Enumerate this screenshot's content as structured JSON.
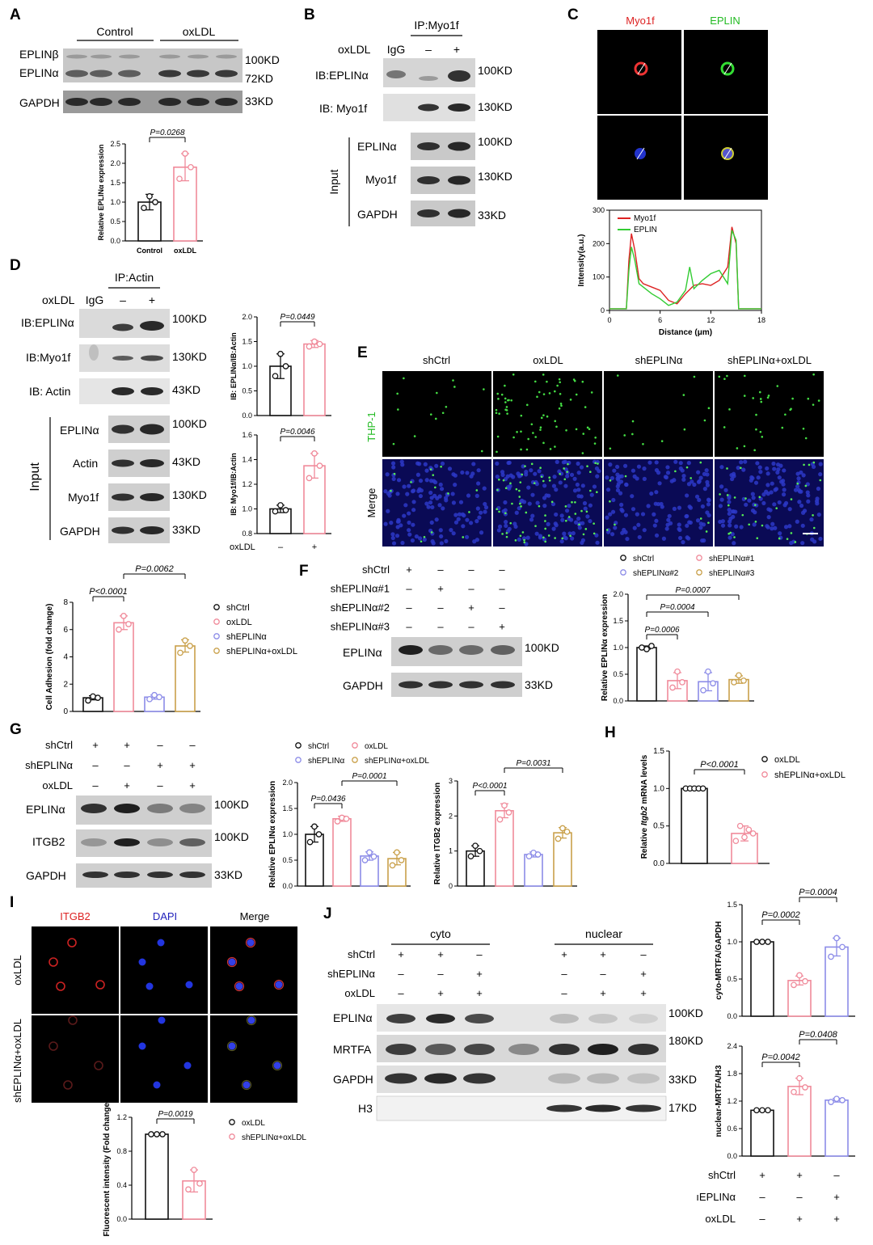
{
  "panelA": {
    "label": "A",
    "groups": [
      "Control",
      "oxLDL"
    ],
    "rows": [
      "EPLINβ",
      "EPLINα",
      "GAPDH"
    ],
    "markers": [
      "100KD",
      "72KD",
      "33KD"
    ],
    "chart_data": {
      "type": "bar",
      "categories": [
        "Control",
        "oxLDL"
      ],
      "values": [
        1.0,
        1.9
      ],
      "points": [
        [
          0.85,
          1.15,
          1.0
        ],
        [
          1.6,
          2.25,
          1.9
        ]
      ],
      "errors": [
        0.2,
        0.35
      ],
      "ylim": [
        0,
        2.5
      ],
      "yticks": [
        "0.0",
        "0.5",
        "1.0",
        "1.5",
        "2.0",
        "2.5"
      ],
      "ylabel": "Relative EPLINα expression",
      "pvalue": "P=0.0268",
      "colors": [
        "#111111",
        "#f08a9a"
      ]
    }
  },
  "panelB": {
    "label": "B",
    "ip_title": "IP:Myo1f",
    "treat_label": "oxLDL",
    "lanes": [
      "IgG",
      "–",
      "+"
    ],
    "ib_rows": [
      "IB:EPLINα",
      "IB: Myo1f"
    ],
    "ib_markers": [
      "100KD",
      "130KD"
    ],
    "input_label": "Input",
    "input_rows": [
      "EPLINα",
      "Myo1f",
      "GAPDH"
    ],
    "input_markers": [
      "100KD",
      "130KD",
      "33KD"
    ]
  },
  "panelC": {
    "label": "C",
    "channels": [
      "Myo1f",
      "EPLIN"
    ],
    "chart_data": {
      "type": "line",
      "xlabel": "Distance (μm)",
      "ylabel": "Intensity(a.u.)",
      "xlim": [
        0,
        18
      ],
      "ylim": [
        0,
        300
      ],
      "xticks": [
        "0",
        "6",
        "12",
        "18"
      ],
      "yticks": [
        "0",
        "100",
        "200",
        "300"
      ],
      "series": [
        {
          "name": "Myo1f",
          "color": "#d22",
          "x": [
            0,
            2,
            2.3,
            2.6,
            3,
            3.5,
            4,
            5,
            6,
            7,
            8,
            9,
            10,
            11,
            12,
            13,
            14,
            14.5,
            15,
            15.3,
            15.6,
            18
          ],
          "y": [
            5,
            5,
            150,
            230,
            180,
            95,
            80,
            70,
            60,
            30,
            20,
            50,
            75,
            80,
            75,
            90,
            130,
            250,
            200,
            5,
            5,
            5
          ]
        },
        {
          "name": "EPLIN",
          "color": "#3c3",
          "x": [
            0,
            2,
            2.3,
            2.6,
            3,
            3.5,
            4,
            5,
            6,
            7,
            8,
            9,
            9.5,
            10,
            11,
            12,
            13,
            14,
            14.5,
            15,
            15.3,
            15.6,
            18
          ],
          "y": [
            5,
            5,
            120,
            190,
            150,
            80,
            70,
            50,
            35,
            15,
            25,
            60,
            130,
            65,
            90,
            110,
            120,
            80,
            240,
            210,
            5,
            5,
            5
          ]
        }
      ]
    }
  },
  "panelD": {
    "label": "D",
    "ip_title": "IP:Actin",
    "treat_label": "oxLDL",
    "lanes": [
      "IgG",
      "–",
      "+"
    ],
    "ib_rows": [
      "IB:EPLINα",
      "IB:Myo1f",
      "IB: Actin"
    ],
    "ib_markers": [
      "100KD",
      "130KD",
      "43KD"
    ],
    "input_label": "Input",
    "input_rows": [
      "EPLINα",
      "Actin",
      "Myo1f",
      "GAPDH"
    ],
    "input_markers": [
      "100KD",
      "43KD",
      "130KD",
      "33KD"
    ],
    "chart1": {
      "type": "bar",
      "categories": [
        "–",
        "+"
      ],
      "values": [
        1.0,
        1.45
      ],
      "points": [
        [
          0.8,
          1.25,
          1.0
        ],
        [
          1.4,
          1.5,
          1.45
        ]
      ],
      "errors": [
        0.25,
        0.07
      ],
      "ylim": [
        0,
        2.0
      ],
      "yticks": [
        "0.0",
        "0.5",
        "1.0",
        "1.5",
        "2.0"
      ],
      "ylabel": "IB: EPLINα/IB:Actin",
      "pvalue": "P=0.0449",
      "colors": [
        "#111111",
        "#f08a9a"
      ]
    },
    "chart2": {
      "type": "bar",
      "categories": [
        "–",
        "+"
      ],
      "values": [
        1.0,
        1.35
      ],
      "points": [
        [
          0.98,
          1.03,
          0.99
        ],
        [
          1.25,
          1.45,
          1.35
        ]
      ],
      "errors": [
        0.03,
        0.1
      ],
      "ylim": [
        0.8,
        1.6
      ],
      "yticks": [
        "0.8",
        "1.0",
        "1.2",
        "1.4",
        "1.6"
      ],
      "ylabel": "IB: Myo1f/IB:Actin",
      "pvalue": "P=0.0046",
      "xlabel": "oxLDL",
      "colors": [
        "#111111",
        "#f08a9a"
      ]
    }
  },
  "panelE": {
    "label": "E",
    "columns": [
      "shCtrl",
      "oxLDL",
      "shEPLINα",
      "shEPLINα+oxLDL"
    ],
    "rows": [
      "THP-1",
      "Merge"
    ],
    "chart_data": {
      "type": "bar",
      "categories": [
        "shCtrl",
        "oxLDL",
        "shEPLINα",
        "shEPLINα+oxLDL"
      ],
      "values": [
        1.0,
        6.5,
        1.05,
        4.8
      ],
      "points": [
        [
          0.8,
          1.1,
          1.0
        ],
        [
          6.0,
          7.0,
          6.4
        ],
        [
          0.9,
          1.2,
          1.05
        ],
        [
          4.3,
          5.2,
          4.8
        ]
      ],
      "errors": [
        0.15,
        0.5,
        0.15,
        0.45
      ],
      "ylim": [
        0,
        8
      ],
      "yticks": [
        "0",
        "2",
        "4",
        "6",
        "8"
      ],
      "ylabel": "Cell Adhesion (fold change)",
      "p1": "P<0.0001",
      "p2": "P=0.0062",
      "colors": [
        "#111111",
        "#f08a9a",
        "#8c8ce8",
        "#c9a04a"
      ]
    }
  },
  "panelF": {
    "label": "F",
    "conditions": [
      "shCtrl",
      "shEPLINα#1",
      "shEPLINα#2",
      "shEPLINα#3"
    ],
    "signs": [
      [
        "+",
        "–",
        "–",
        "–"
      ],
      [
        "–",
        "+",
        "–",
        "–"
      ],
      [
        "–",
        "–",
        "+",
        "–"
      ],
      [
        "–",
        "–",
        "–",
        "+"
      ]
    ],
    "rows": [
      "EPLINα",
      "GAPDH"
    ],
    "markers": [
      "100KD",
      "33KD"
    ],
    "chart_data": {
      "type": "bar",
      "categories": [
        "shCtrl",
        "shEPLINα#1",
        "shEPLINα#2",
        "shEPLINα#3"
      ],
      "values": [
        1.0,
        0.38,
        0.36,
        0.4
      ],
      "points": [
        [
          1.0,
          0.97,
          1.03
        ],
        [
          0.25,
          0.55,
          0.35
        ],
        [
          0.2,
          0.55,
          0.33
        ],
        [
          0.35,
          0.48,
          0.38
        ]
      ],
      "errors": [
        0.03,
        0.15,
        0.17,
        0.07
      ],
      "ylim": [
        0,
        2.0
      ],
      "yticks": [
        "0.0",
        "0.5",
        "1.0",
        "1.5",
        "2.0"
      ],
      "ylabel": "Relative EPLINα expression",
      "pvalues": [
        "P=0.0006",
        "P=0.0004",
        "P=0.0007"
      ],
      "colors": [
        "#111111",
        "#f08a9a",
        "#8c8ce8",
        "#c9a04a"
      ]
    }
  },
  "panelG": {
    "label": "G",
    "conditions": [
      "shCtrl",
      "shEPLINα",
      "oxLDL"
    ],
    "signs": [
      [
        "+",
        "+",
        "–",
        "–"
      ],
      [
        "–",
        "–",
        "+",
        "+"
      ],
      [
        "–",
        "+",
        "–",
        "+"
      ]
    ],
    "rows": [
      "EPLINα",
      "ITGB2",
      "GAPDH"
    ],
    "markers": [
      "100KD",
      "100KD",
      "33KD"
    ],
    "legend": [
      "shCtrl",
      "oxLDL",
      "shEPLINα",
      "shEPLINα+oxLDL"
    ],
    "chart1": {
      "type": "bar",
      "categories": [
        "shCtrl",
        "oxLDL",
        "shEPLINα",
        "shEPLINα+oxLDL"
      ],
      "values": [
        1.0,
        1.3,
        0.58,
        0.53
      ],
      "points": [
        [
          0.85,
          1.15,
          1.0
        ],
        [
          1.25,
          1.32,
          1.3
        ],
        [
          0.5,
          0.65,
          0.57
        ],
        [
          0.4,
          0.65,
          0.5
        ]
      ],
      "errors": [
        0.15,
        0.05,
        0.08,
        0.12
      ],
      "ylim": [
        0,
        2.0
      ],
      "yticks": [
        "0.0",
        "0.5",
        "1.0",
        "1.5",
        "2.0"
      ],
      "ylabel": "Relative EPLINα expression",
      "pvalues": [
        "P=0.0436",
        "P=0.0001"
      ],
      "colors": [
        "#111111",
        "#f08a9a",
        "#8c8ce8",
        "#c9a04a"
      ]
    },
    "chart2": {
      "type": "bar",
      "categories": [
        "shCtrl",
        "oxLDL",
        "shEPLINα",
        "shEPLINα+oxLDL"
      ],
      "values": [
        1.0,
        2.15,
        0.9,
        1.52
      ],
      "points": [
        [
          0.85,
          1.15,
          1.0
        ],
        [
          1.9,
          2.3,
          2.1
        ],
        [
          0.85,
          0.95,
          0.9
        ],
        [
          1.35,
          1.65,
          1.55
        ]
      ],
      "errors": [
        0.15,
        0.2,
        0.07,
        0.15
      ],
      "ylim": [
        0,
        3
      ],
      "yticks": [
        "0",
        "1",
        "2",
        "3"
      ],
      "ylabel": "Relative ITGB2 expression",
      "pvalues": [
        "P<0.0001",
        "P=0.0031"
      ],
      "colors": [
        "#111111",
        "#f08a9a",
        "#8c8ce8",
        "#c9a04a"
      ]
    }
  },
  "panelH": {
    "label": "H",
    "legend": [
      "oxLDL",
      "shEPLINα+oxLDL"
    ],
    "chart_data": {
      "type": "bar",
      "categories": [
        "oxLDL",
        "shEPLINα+oxLDL"
      ],
      "values": [
        1.0,
        0.4
      ],
      "points": [
        [
          1.0,
          1.0,
          1.0,
          1.0,
          1.0
        ],
        [
          0.3,
          0.5,
          0.35,
          0.45,
          0.4
        ]
      ],
      "errors": [
        0.0,
        0.1
      ],
      "ylim": [
        0,
        1.5
      ],
      "yticks": [
        "0.0",
        "0.5",
        "1.0",
        "1.5"
      ],
      "ylabel_pre": "Relative ",
      "ylabel_it": "Itgb2",
      "ylabel_post": " mRNA levels",
      "pvalue": "P<0.0001",
      "colors": [
        "#111111",
        "#f08a9a"
      ]
    }
  },
  "panelI": {
    "label": "I",
    "columns": [
      "ITGB2",
      "DAPI",
      "Merge"
    ],
    "rows": [
      "oxLDL",
      "shEPLINα+oxLDL"
    ],
    "legend": [
      "oxLDL",
      "shEPLINα+oxLDL"
    ],
    "chart_data": {
      "type": "bar",
      "categories": [
        "oxLDL",
        "shEPLINα+oxLDL"
      ],
      "values": [
        1.0,
        0.45
      ],
      "points": [
        [
          1.0,
          1.0,
          1.0
        ],
        [
          0.35,
          0.58,
          0.42
        ]
      ],
      "errors": [
        0.0,
        0.13
      ],
      "ylim": [
        0,
        1.2
      ],
      "yticks": [
        "0.0",
        "0.4",
        "0.8",
        "1.2"
      ],
      "ylabel": "Fluorescent intensity (Fold change)",
      "pvalue": "P=0.0019",
      "colors": [
        "#111111",
        "#f08a9a"
      ]
    }
  },
  "panelJ": {
    "label": "J",
    "fractions": [
      "cyto",
      "nuclear"
    ],
    "conditions": [
      "shCtrl",
      "shEPLINα",
      "oxLDL"
    ],
    "signs": [
      [
        "+",
        "+",
        "–"
      ],
      [
        "–",
        "–",
        "+"
      ],
      [
        "–",
        "+",
        "+"
      ]
    ],
    "rows": [
      "EPLINα",
      "MRTFA",
      "GAPDH",
      "H3"
    ],
    "markers": [
      "100KD",
      "180KD",
      "33KD",
      "17KD"
    ],
    "xconditions": [
      "shCtrl",
      "ıEPLINα",
      "oxLDL"
    ],
    "chart1": {
      "type": "bar",
      "categories": [
        "shCtrl",
        "shCtrl+oxLDL",
        "shEPLINα+oxLDL"
      ],
      "values": [
        1.0,
        0.48,
        0.93
      ],
      "points": [
        [
          1.0,
          1.0,
          1.0
        ],
        [
          0.42,
          0.55,
          0.47
        ],
        [
          0.8,
          1.05,
          0.93
        ]
      ],
      "errors": [
        0.0,
        0.06,
        0.12
      ],
      "ylim": [
        0,
        1.5
      ],
      "yticks": [
        "0.0",
        "0.5",
        "1.0",
        "1.5"
      ],
      "ylabel": "cyto-MRTFA/GAPDH",
      "pvalues": [
        "P=0.0002",
        "P=0.0004"
      ],
      "colors": [
        "#111111",
        "#f08a9a",
        "#8c8ce8"
      ]
    },
    "chart2": {
      "type": "bar",
      "categories": [
        "shCtrl",
        "shCtrl+oxLDL",
        "shEPLINα+oxLDL"
      ],
      "values": [
        1.0,
        1.52,
        1.22
      ],
      "points": [
        [
          1.0,
          1.0,
          1.0
        ],
        [
          1.4,
          1.7,
          1.5
        ],
        [
          1.18,
          1.25,
          1.22
        ]
      ],
      "errors": [
        0.0,
        0.18,
        0.04
      ],
      "ylim": [
        0,
        2.4
      ],
      "yticks": [
        "0.0",
        "0.6",
        "1.2",
        "1.8",
        "2.4"
      ],
      "ylabel": "nuclear-MRTFA/H3",
      "pvalues": [
        "P=0.0042",
        "P=0.0408"
      ],
      "colors": [
        "#111111",
        "#f08a9a",
        "#8c8ce8"
      ]
    }
  }
}
